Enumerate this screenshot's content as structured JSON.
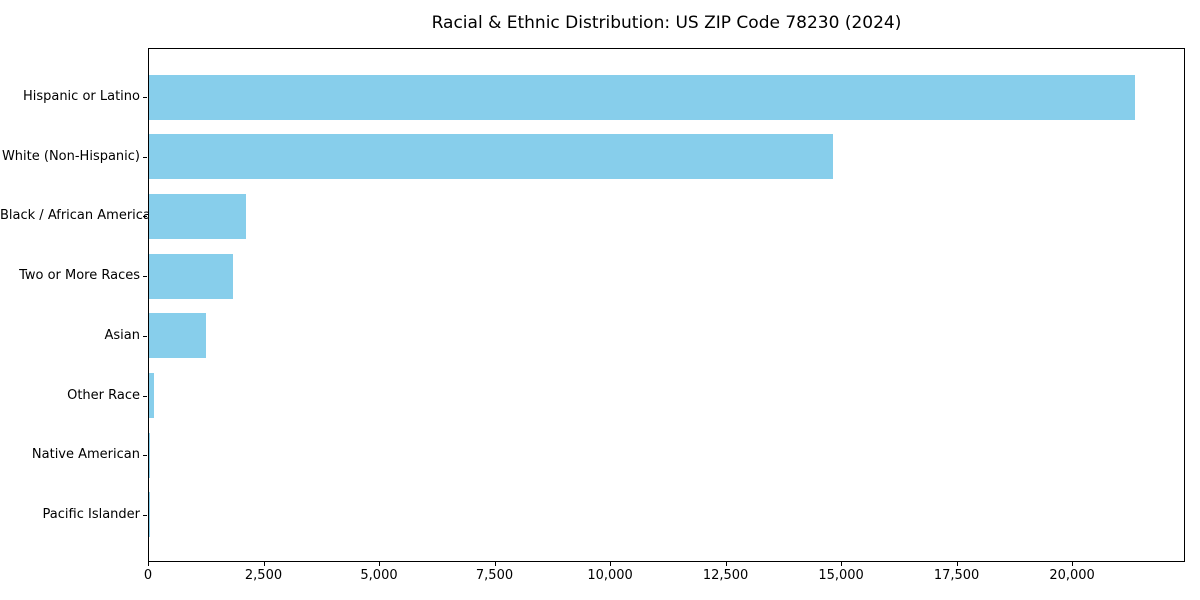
{
  "figure": {
    "background": "#ffffff"
  },
  "chart_data": {
    "type": "bar",
    "orientation": "horizontal",
    "title": "Racial & Ethnic Distribution: US ZIP Code 78230 (2024)",
    "categories": [
      "Hispanic or Latino",
      "White (Non-Hispanic)",
      "Black / African American",
      "Two or More Races",
      "Asian",
      "Other Race",
      "Native American",
      "Pacific Islander"
    ],
    "values": [
      21340,
      14800,
      2100,
      1815,
      1230,
      100,
      30,
      10
    ],
    "bar_color": "#87CEEB",
    "axis_color": "#000000",
    "text_color": "#000000",
    "xlabel": "",
    "ylabel": "",
    "xlim": [
      0,
      22400
    ],
    "x_ticks": [
      0,
      2500,
      5000,
      7500,
      10000,
      12500,
      15000,
      17500,
      20000
    ],
    "x_tick_labels": [
      "0",
      "2,500",
      "5,000",
      "7,500",
      "10,000",
      "12,500",
      "15,000",
      "17,500",
      "20,000"
    ],
    "grid": false,
    "legend": "none"
  }
}
